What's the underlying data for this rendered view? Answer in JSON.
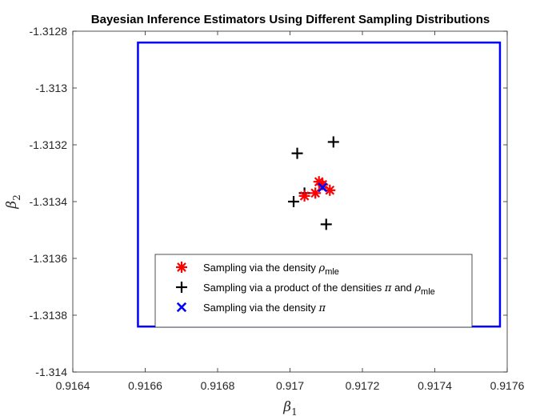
{
  "chart_data": {
    "type": "scatter",
    "title": "Bayesian Inference Estimators Using Different Sampling Distributions",
    "xlabel": {
      "text": "β",
      "sub": "1"
    },
    "ylabel": {
      "text": "β",
      "sub": "2"
    },
    "xlim": [
      0.9164,
      0.9176
    ],
    "ylim": [
      -1.314,
      -1.3128
    ],
    "xticks": [
      "0.9164",
      "0.9166",
      "0.9168",
      "0.917",
      "0.9172",
      "0.9174",
      "0.9176"
    ],
    "yticks": [
      "-1.3128",
      "-1.313",
      "-1.3132",
      "-1.3134",
      "-1.3136",
      "-1.3138",
      "-1.314"
    ],
    "grid": false,
    "legend_position": "bottom-center",
    "bounding_box": {
      "x": [
        0.91658,
        0.91758
      ],
      "y": [
        -1.31384,
        -1.31284
      ],
      "color": "#0000ff"
    },
    "series": [
      {
        "name": "Sampling via the density ρmle",
        "legend": {
          "prefix": "Sampling via the density ",
          "sym": "ρ",
          "sub": "mle"
        },
        "marker": "asterisk",
        "color": "#ff0000",
        "x": [
          0.91708,
          0.91704,
          0.91711,
          0.91707,
          0.91709
        ],
        "y": [
          -1.31333,
          -1.31338,
          -1.31336,
          -1.31337,
          -1.31334
        ]
      },
      {
        "name": "Sampling via a product of the densities π and ρmle",
        "legend": {
          "prefix": "Sampling via a product of the densities ",
          "sym": "π",
          "mid": " and ",
          "sym2": "ρ",
          "sub": "mle"
        },
        "marker": "plus",
        "color": "#000000",
        "x": [
          0.91702,
          0.91712,
          0.91704,
          0.91701,
          0.9171
        ],
        "y": [
          -1.31323,
          -1.31319,
          -1.31337,
          -1.3134,
          -1.31348
        ]
      },
      {
        "name": "Sampling via the density π",
        "legend": {
          "prefix": "Sampling via the density ",
          "sym": "π"
        },
        "marker": "x",
        "color": "#0000ff",
        "x": [
          0.91709
        ],
        "y": [
          -1.31335
        ]
      }
    ]
  }
}
